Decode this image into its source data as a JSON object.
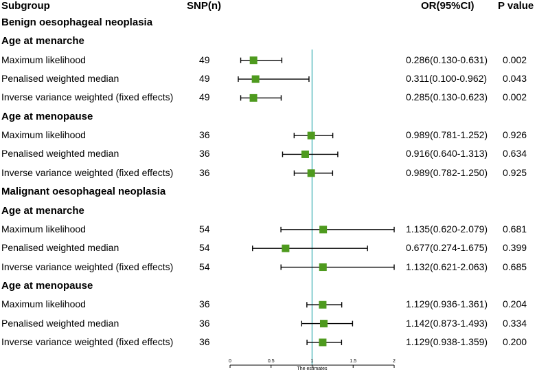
{
  "header": {
    "subgroup": "Subgroup",
    "snp": "SNP(n)",
    "or": "OR(95%CI)",
    "p": "P value"
  },
  "rows": [
    {
      "kind": "group",
      "label": "Benign oesophageal neoplasia"
    },
    {
      "kind": "subgroup",
      "label": "Age at menarche"
    },
    {
      "kind": "data",
      "label": "Maximum likelihood",
      "snp": "49",
      "or_text": "0.286(0.130-0.631)",
      "p": "0.002"
    },
    {
      "kind": "data",
      "label": "Penalised weighted median",
      "snp": "49",
      "or_text": "0.311(0.100-0.962)",
      "p": "0.043"
    },
    {
      "kind": "data",
      "label": "Inverse variance weighted (fixed effects)",
      "snp": "49",
      "or_text": "0.285(0.130-0.623)",
      "p": "0.002"
    },
    {
      "kind": "subgroup",
      "label": "Age at menopause"
    },
    {
      "kind": "data",
      "label": "Maximum likelihood",
      "snp": "36",
      "or_text": "0.989(0.781-1.252)",
      "p": "0.926"
    },
    {
      "kind": "data",
      "label": "Penalised weighted median",
      "snp": "36",
      "or_text": "0.916(0.640-1.313)",
      "p": "0.634"
    },
    {
      "kind": "data",
      "label": "Inverse variance weighted (fixed effects)",
      "snp": "36",
      "or_text": "0.989(0.782-1.250)",
      "p": "0.925"
    },
    {
      "kind": "group",
      "label": "Malignant oesophageal neoplasia"
    },
    {
      "kind": "subgroup",
      "label": "Age at menarche"
    },
    {
      "kind": "data",
      "label": "Maximum likelihood",
      "snp": "54",
      "or_text": "1.135(0.620-2.079)",
      "p": "0.681"
    },
    {
      "kind": "data",
      "label": "Penalised weighted median",
      "snp": "54",
      "or_text": "0.677(0.274-1.675)",
      "p": "0.399"
    },
    {
      "kind": "data",
      "label": "Inverse variance weighted (fixed effects)",
      "snp": "54",
      "or_text": "1.132(0.621-2.063)",
      "p": "0.685"
    },
    {
      "kind": "subgroup",
      "label": "Age at menopause"
    },
    {
      "kind": "data",
      "label": "Maximum likelihood",
      "snp": "36",
      "or_text": "1.129(0.936-1.361)",
      "p": "0.204"
    },
    {
      "kind": "data",
      "label": "Penalised weighted median",
      "snp": "36",
      "or_text": "1.142(0.873-1.493)",
      "p": "0.334"
    },
    {
      "kind": "data",
      "label": "Inverse variance weighted (fixed effects)",
      "snp": "36",
      "or_text": "1.129(0.938-1.359)",
      "p": "0.200"
    }
  ],
  "chart_data": {
    "type": "forest",
    "xlabel": "The estimates",
    "xlim": [
      0,
      2
    ],
    "xticks": [
      "0",
      "0.5",
      "1",
      "1.5",
      "2"
    ],
    "reference_line": 1,
    "reference_color": "#5BBCC0",
    "marker_color": "#4E9A1E",
    "series": [
      {
        "name": "Benign / Age at menarche / Maximum likelihood",
        "or": 0.286,
        "lower": 0.13,
        "upper": 0.631
      },
      {
        "name": "Benign / Age at menarche / Penalised weighted median",
        "or": 0.311,
        "lower": 0.1,
        "upper": 0.962
      },
      {
        "name": "Benign / Age at menarche / Inverse variance weighted (fixed effects)",
        "or": 0.285,
        "lower": 0.13,
        "upper": 0.623
      },
      {
        "name": "Benign / Age at menopause / Maximum likelihood",
        "or": 0.989,
        "lower": 0.781,
        "upper": 1.252
      },
      {
        "name": "Benign / Age at menopause / Penalised weighted median",
        "or": 0.916,
        "lower": 0.64,
        "upper": 1.313
      },
      {
        "name": "Benign / Age at menopause / Inverse variance weighted (fixed effects)",
        "or": 0.989,
        "lower": 0.782,
        "upper": 1.25
      },
      {
        "name": "Malignant / Age at menarche / Maximum likelihood",
        "or": 1.135,
        "lower": 0.62,
        "upper": 2.079
      },
      {
        "name": "Malignant / Age at menarche / Penalised weighted median",
        "or": 0.677,
        "lower": 0.274,
        "upper": 1.675
      },
      {
        "name": "Malignant / Age at menarche / Inverse variance weighted (fixed effects)",
        "or": 1.132,
        "lower": 0.621,
        "upper": 2.063
      },
      {
        "name": "Malignant / Age at menopause / Maximum likelihood",
        "or": 1.129,
        "lower": 0.936,
        "upper": 1.361
      },
      {
        "name": "Malignant / Age at menopause / Penalised weighted median",
        "or": 1.142,
        "lower": 0.873,
        "upper": 1.493
      },
      {
        "name": "Malignant / Age at menopause / Inverse variance weighted (fixed effects)",
        "or": 1.129,
        "lower": 0.938,
        "upper": 1.359
      }
    ]
  }
}
